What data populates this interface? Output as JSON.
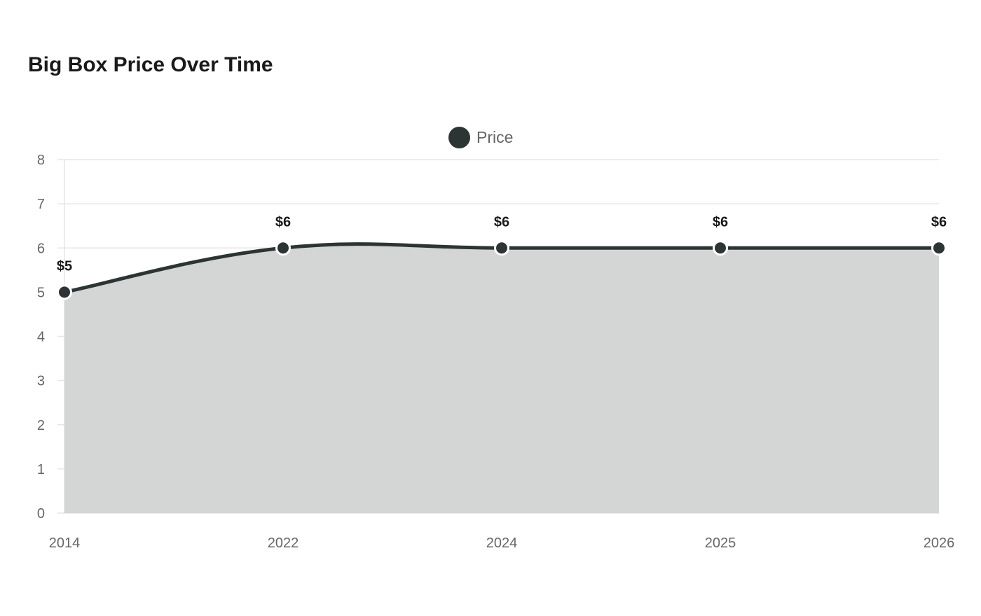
{
  "chart_data": {
    "type": "area",
    "title": "Big Box Price Over Time",
    "xlabel": "",
    "ylabel": "",
    "categories": [
      "2014",
      "2022",
      "2024",
      "2025",
      "2026"
    ],
    "series": [
      {
        "name": "Price",
        "values": [
          5,
          6,
          6,
          6,
          6
        ],
        "data_labels": [
          "$5",
          "$6",
          "$6",
          "$6",
          "$6"
        ],
        "color": "#2c3434",
        "fill_color": "#d4d6d6"
      }
    ],
    "ylim": [
      0,
      8
    ],
    "y_ticks": [
      "0",
      "1",
      "2",
      "3",
      "4",
      "5",
      "6",
      "7",
      "8"
    ],
    "grid": true,
    "legend_position": "top-center"
  }
}
